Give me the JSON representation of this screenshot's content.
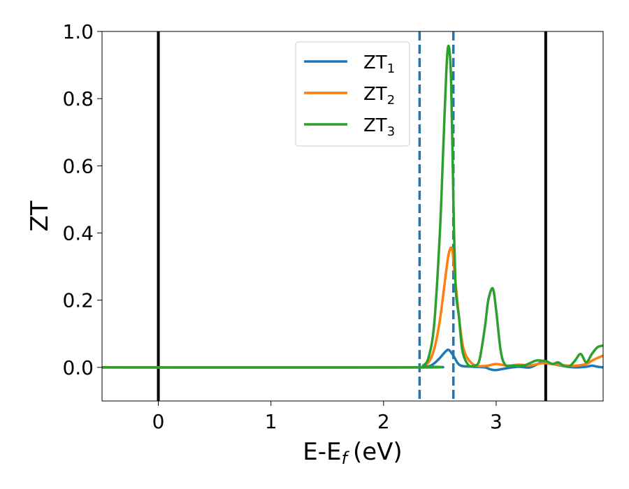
{
  "chart_data": {
    "type": "line",
    "title": "",
    "xlabel_main": "E-E",
    "xlabel_sub": "f",
    "xlabel_unit": "(eV)",
    "ylabel": "ZT",
    "xlim": [
      -0.5,
      3.95
    ],
    "ylim": [
      -0.1,
      1.0
    ],
    "xticks": [
      0,
      1,
      2,
      3
    ],
    "xtick_labels": [
      "0",
      "1",
      "2",
      "3"
    ],
    "yticks": [
      0.0,
      0.2,
      0.4,
      0.6,
      0.8,
      1.0
    ],
    "ytick_labels": [
      "0.0",
      "0.2",
      "0.4",
      "0.6",
      "0.8",
      "1.0"
    ],
    "grid": false,
    "legend_position": "top-center",
    "vertical_lines": [
      {
        "x": 0.0,
        "style": "solid",
        "color": "#000000"
      },
      {
        "x": 3.44,
        "style": "solid",
        "color": "#000000"
      },
      {
        "x": 2.32,
        "style": "dashed",
        "color": "#1f77b4"
      },
      {
        "x": 2.62,
        "style": "dashed",
        "color": "#1f77b4"
      }
    ],
    "series": [
      {
        "name": "ZT",
        "subscript": "1",
        "color": "#1f77b4",
        "x": [
          -0.5,
          2.3,
          2.4,
          2.45,
          2.5,
          2.55,
          2.58,
          2.62,
          2.66,
          2.7,
          2.8,
          2.9,
          2.95,
          3.0,
          3.1,
          3.2,
          3.3,
          3.4,
          3.45,
          3.5,
          3.6,
          3.7,
          3.8,
          3.85,
          3.9,
          3.95
        ],
        "y": [
          0.0,
          0.0,
          0.003,
          0.012,
          0.028,
          0.047,
          0.052,
          0.035,
          0.012,
          0.004,
          0.002,
          0.0,
          -0.006,
          -0.008,
          -0.002,
          0.002,
          0.0,
          0.015,
          0.016,
          0.01,
          0.004,
          0.0,
          0.002,
          0.005,
          0.002,
          0.0
        ]
      },
      {
        "name": "ZT",
        "subscript": "2",
        "color": "#ff7f0e",
        "x": [
          -0.5,
          2.3,
          2.35,
          2.4,
          2.45,
          2.5,
          2.55,
          2.58,
          2.61,
          2.64,
          2.68,
          2.72,
          2.8,
          2.9,
          3.0,
          3.1,
          3.2,
          3.3,
          3.4,
          3.45,
          3.5,
          3.6,
          3.7,
          3.8,
          3.85,
          3.9,
          3.95
        ],
        "y": [
          0.0,
          0.0,
          0.003,
          0.015,
          0.055,
          0.14,
          0.27,
          0.34,
          0.35,
          0.25,
          0.12,
          0.045,
          0.008,
          0.004,
          0.01,
          0.005,
          0.008,
          0.006,
          0.012,
          0.012,
          0.01,
          0.006,
          0.005,
          0.01,
          0.02,
          0.028,
          0.035
        ]
      },
      {
        "name": "ZT",
        "subscript": "3",
        "color": "#2ca02c",
        "x": [
          -0.5,
          2.3,
          2.35,
          2.4,
          2.45,
          2.5,
          2.53,
          2.56,
          2.58,
          2.6,
          2.62,
          2.64,
          2.67,
          2.7,
          2.75,
          2.8,
          2.85,
          2.9,
          2.93,
          2.97,
          3.0,
          3.04,
          3.08,
          3.15,
          3.25,
          3.35,
          3.4,
          3.45,
          3.5,
          3.55,
          3.6,
          3.65,
          3.7,
          3.75,
          3.8,
          3.85,
          3.9,
          3.95
        ],
        "y": [
          0.0,
          0.0,
          0.005,
          0.03,
          0.13,
          0.4,
          0.65,
          0.9,
          0.955,
          0.85,
          0.5,
          0.24,
          0.15,
          0.05,
          0.008,
          0.005,
          0.02,
          0.12,
          0.2,
          0.235,
          0.17,
          0.05,
          0.008,
          0.005,
          0.006,
          0.02,
          0.02,
          0.018,
          0.01,
          0.015,
          0.005,
          0.003,
          0.02,
          0.04,
          0.015,
          0.04,
          0.06,
          0.065
        ]
      }
    ]
  }
}
